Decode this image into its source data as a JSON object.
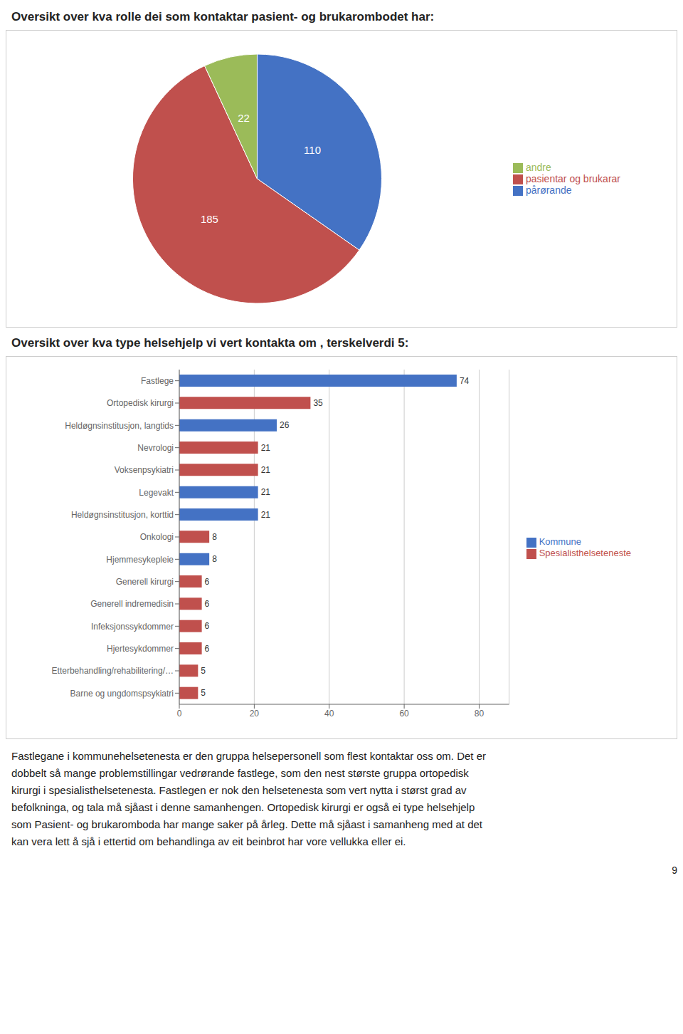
{
  "chart_data": [
    {
      "type": "pie",
      "title": "Oversikt over kva rolle dei som kontaktar pasient- og brukarombodet har:",
      "categories": [
        "pårørande",
        "pasientar og brukarar",
        "andre"
      ],
      "values": [
        110,
        185,
        22
      ],
      "colors": [
        "#4472C4",
        "#C0504D",
        "#9BBB59"
      ],
      "data_labels": true,
      "legend": "right"
    },
    {
      "type": "bar",
      "title": "Oversikt over kva type helsehjelp vi vert kontakta om , terskelverdi 5:",
      "orientation": "horizontal",
      "stacked": true,
      "categories": [
        "Barne og ungdomspsykiatri",
        "Etterbehandling/rehabilitering/…",
        "Hjertesykdommer",
        "Infeksjonssykdommer",
        "Generell indremedisin",
        "Generell kirurgi",
        "Hjemmesykepleie",
        "Onkologi",
        "Heldøgnsinstitusjon, korttid",
        "Legevakt",
        "Voksenpsykiatri",
        "Nevrologi",
        "Heldøgnsinstitusjon, langtids",
        "Ortopedisk kirurgi",
        "Fastlege"
      ],
      "series": [
        {
          "name": "Spesialisthelseteneste",
          "color": "#C0504D",
          "values": [
            5,
            5,
            6,
            6,
            6,
            6,
            null,
            8,
            null,
            null,
            21,
            21,
            null,
            35,
            null
          ]
        },
        {
          "name": "Kommune",
          "color": "#4472C4",
          "values": [
            null,
            null,
            null,
            null,
            null,
            null,
            8,
            null,
            21,
            21,
            null,
            null,
            26,
            null,
            74
          ]
        }
      ],
      "xlim": [
        0,
        88
      ],
      "xticks": [
        0,
        20,
        40,
        60,
        80
      ],
      "grid": true,
      "data_labels": true,
      "legend": "right",
      "annotations": [
        "Fastlegane i kommunehelsetenesta er den gruppa helsepersonell som flest kontaktar oss om. Det er",
        "dobbelt så mange problemstillingar vedrørande fastlege, som den nest største gruppa ortopedisk",
        "kirurgi i spesialisthelsetenesta. Fastlegen er nok den helsetenesta som vert nytta i størst grad av",
        "befolkninga, og tala må sjåast i denne samanhengen. Ortopedisk kirurgi er også ei type helsehjelp",
        "som Pasient- og brukaromboda har mange saker på årleg. Dette må sjåast i samanheng med at det",
        "kan vera lett å sjå i ettertid om behandlinga av eit beinbrot har vore vellukka eller ei.",
        "9"
      ]
    }
  ]
}
